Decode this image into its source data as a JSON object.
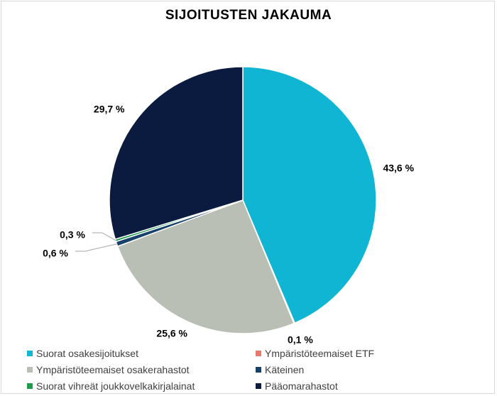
{
  "chart_data": {
    "type": "pie",
    "title": "SIJOITUSTEN JAKAUMA",
    "legend_position": "bottom",
    "slices": [
      {
        "label": "Suorat osakesijoitukset",
        "value": 43.6,
        "value_label": "43,6 %",
        "color": "#0fb5d2"
      },
      {
        "label": "Ympäristöteemaiset ETF",
        "value": 0.1,
        "value_label": "0,1 %",
        "color": "#e8786b"
      },
      {
        "label": "Ympäristöteemaiset osakerahastot",
        "value": 25.6,
        "value_label": "25,6 %",
        "color": "#b9bfb4"
      },
      {
        "label": "Käteinen",
        "value": 0.6,
        "value_label": "0,6 %",
        "color": "#17406a"
      },
      {
        "label": "Suorat vihreät joukkovelkakirjalainat",
        "value": 0.3,
        "value_label": "0,3 %",
        "color": "#1f9a4b"
      },
      {
        "label": "Pääomarahastot",
        "value": 29.7,
        "value_label": "29,7 %",
        "color": "#0b1b3f"
      }
    ]
  }
}
